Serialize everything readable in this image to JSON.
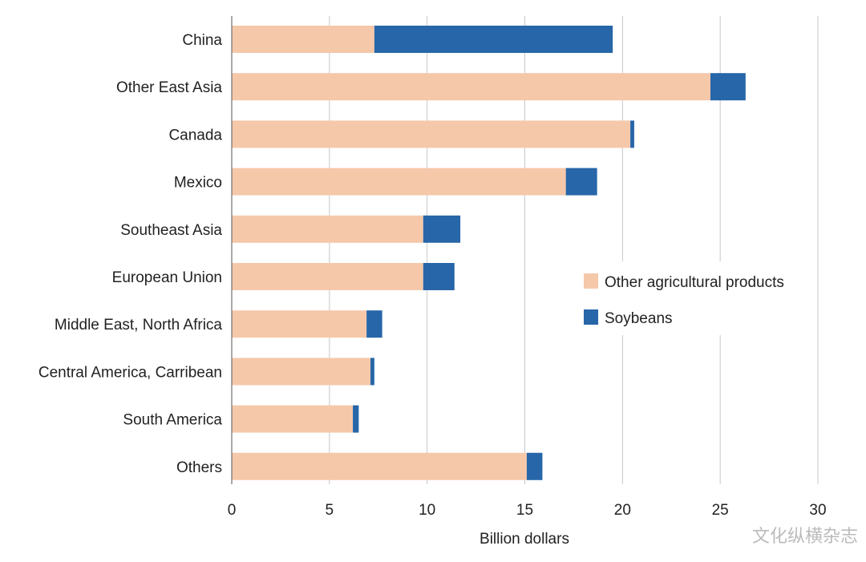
{
  "chart_data": {
    "type": "bar",
    "orientation": "horizontal",
    "stacked": true,
    "title": "",
    "xlabel": "Billion dollars",
    "ylabel": "",
    "xlim": [
      0,
      30
    ],
    "xticks": [
      0,
      5,
      10,
      15,
      20,
      25,
      30
    ],
    "grid": true,
    "legend_position": "center-right",
    "categories": [
      "China",
      "Other East Asia",
      "Canada",
      "Mexico",
      "Southeast Asia",
      "European Union",
      "Middle East, North Africa",
      "Central America, Carribean",
      "South America",
      "Others"
    ],
    "series": [
      {
        "name": "Other agricultural products",
        "color": "#F5C8AA",
        "values": [
          7.3,
          24.5,
          20.4,
          17.1,
          9.8,
          9.8,
          6.9,
          7.1,
          6.2,
          15.1
        ]
      },
      {
        "name": "Soybeans",
        "color": "#2766A8",
        "values": [
          12.2,
          1.8,
          0.2,
          1.6,
          1.9,
          1.6,
          0.8,
          0.2,
          0.3,
          0.8
        ]
      }
    ]
  },
  "watermark": "文化纵横杂志"
}
